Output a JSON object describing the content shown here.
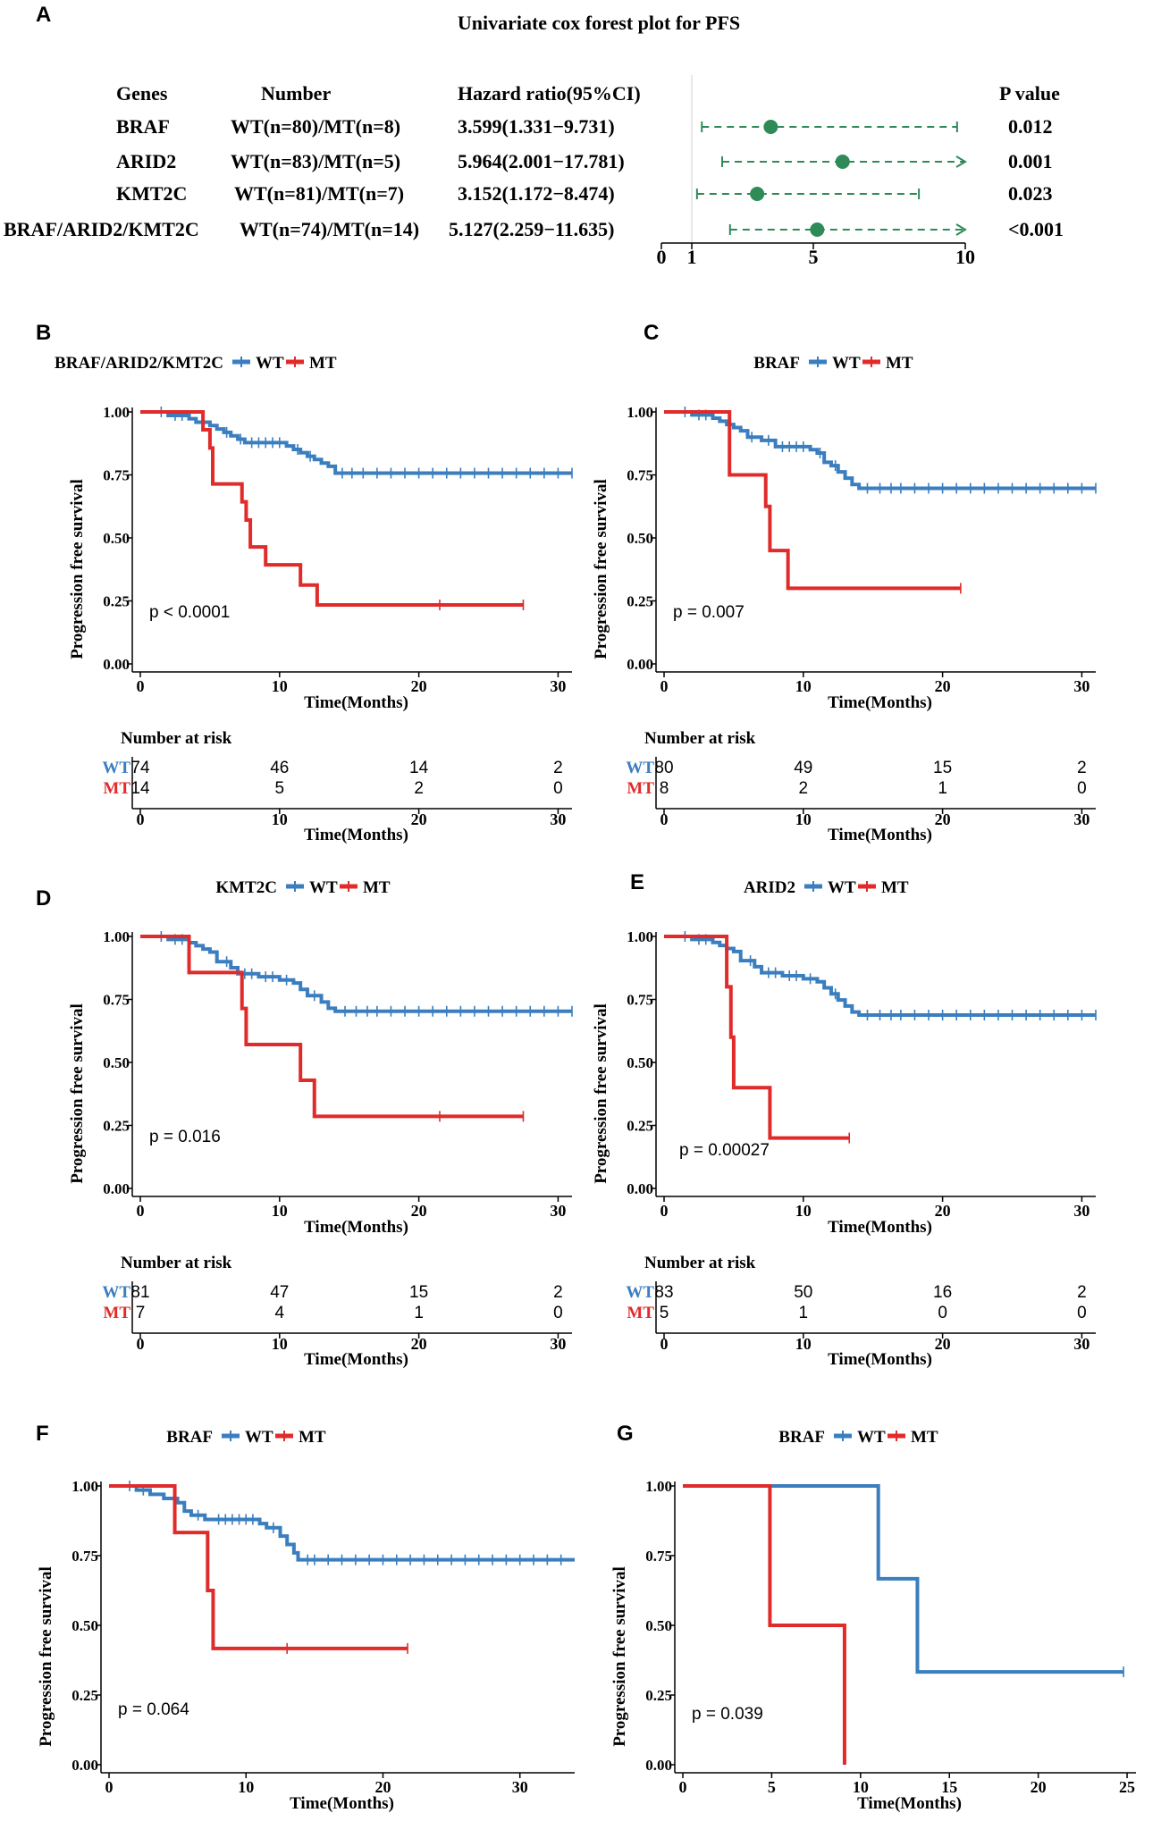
{
  "colors": {
    "wt": "#3a7ebf",
    "mt": "#e02b2b",
    "forest": "#2e8b57",
    "axis": "#000000"
  },
  "panel_letters": [
    "A",
    "B",
    "C",
    "D",
    "E",
    "F",
    "G"
  ],
  "forest": {
    "letter": "A",
    "title": "Univariate cox forest plot for PFS",
    "headers": {
      "genes": "Genes",
      "number": "Number",
      "hr": "Hazard ratio(95%CI)",
      "p": "P value"
    },
    "rows": [
      {
        "gene": "BRAF",
        "number": "WT(n=80)/MT(n=8)",
        "hr_text": "3.599(1.331−9.731)",
        "p": "0.012",
        "hr": 3.599,
        "lo": 1.331,
        "hi": 9.731
      },
      {
        "gene": "ARID2",
        "number": "WT(n=83)/MT(n=5)",
        "hr_text": "5.964(2.001−17.781)",
        "p": "0.001",
        "hr": 5.964,
        "lo": 2.001,
        "hi": 17.781
      },
      {
        "gene": "KMT2C",
        "number": "WT(n=81)/MT(n=7)",
        "hr_text": "3.152(1.172−8.474)",
        "p": "0.023",
        "hr": 3.152,
        "lo": 1.172,
        "hi": 8.474
      },
      {
        "gene": "BRAF/ARID2/KMT2C",
        "number": "WT(n=74)/MT(n=14)",
        "hr_text": "5.127(2.259−11.635)",
        "p": "<0.001",
        "hr": 5.127,
        "lo": 2.259,
        "hi": 11.635
      }
    ],
    "axis": {
      "min": 0,
      "max": 10,
      "ticks": [
        "0",
        "1",
        "5",
        "10"
      ],
      "tick_values": [
        0,
        1,
        5,
        10
      ],
      "ref": 1
    }
  },
  "chart_data": [
    {
      "type": "line",
      "id": "B",
      "letter": "B",
      "legend_title": "BRAF/ARID2/KMT2C",
      "legend_wt": "WT",
      "legend_mt": "MT",
      "ylabel": "Progression free survival",
      "xlabel": "Time(Months)",
      "pvalue": "p < 0.0001",
      "xlim": [
        0,
        31
      ],
      "ylim": [
        0,
        1
      ],
      "xticks": [
        0,
        10,
        20,
        30
      ],
      "yticks": [
        "0.00",
        "0.25",
        "0.50",
        "0.75",
        "1.00"
      ],
      "series": [
        {
          "name": "WT",
          "steps": [
            [
              0,
              1
            ],
            [
              2,
              0.986
            ],
            [
              3.5,
              0.973
            ],
            [
              4,
              0.959
            ],
            [
              5,
              0.946
            ],
            [
              5.5,
              0.932
            ],
            [
              6,
              0.919
            ],
            [
              6.5,
              0.905
            ],
            [
              7,
              0.892
            ],
            [
              7.5,
              0.878
            ],
            [
              10.5,
              0.865
            ],
            [
              11,
              0.851
            ],
            [
              11.5,
              0.838
            ],
            [
              12,
              0.824
            ],
            [
              12.5,
              0.811
            ],
            [
              13,
              0.797
            ],
            [
              13.5,
              0.784
            ],
            [
              14,
              0.757
            ]
          ],
          "end": 31,
          "censors": [
            1.5,
            2.5,
            3,
            6.2,
            7.2,
            8,
            8.5,
            9,
            9.5,
            10,
            11.3,
            12.2,
            14.5,
            15.2,
            16,
            17,
            18,
            19,
            20,
            21,
            22,
            23,
            24,
            25,
            26,
            27,
            28,
            29,
            30,
            31
          ]
        },
        {
          "name": "MT",
          "steps": [
            [
              0,
              1
            ],
            [
              4.5,
              0.929
            ],
            [
              5,
              0.857
            ],
            [
              5.2,
              0.714
            ],
            [
              7.3,
              0.643
            ],
            [
              7.6,
              0.571
            ],
            [
              7.9,
              0.464
            ],
            [
              9,
              0.393
            ],
            [
              11.5,
              0.313
            ],
            [
              12.7,
              0.234
            ]
          ],
          "end": 27.5,
          "censors": [
            21.5,
            27.5
          ]
        }
      ],
      "risk": {
        "title": "Number at risk",
        "wt_label": "WT",
        "mt_label": "MT",
        "wt": [
          "74",
          "46",
          "14",
          "2"
        ],
        "mt": [
          "14",
          "5",
          "2",
          "0"
        ],
        "xlabel": "Time(Months)"
      }
    },
    {
      "type": "line",
      "id": "C",
      "letter": "C",
      "legend_title": "BRAF",
      "legend_wt": "WT",
      "legend_mt": "MT",
      "ylabel": "Progression free survival",
      "xlabel": "Time(Months)",
      "pvalue": "p = 0.007",
      "xlim": [
        0,
        31
      ],
      "ylim": [
        0,
        1
      ],
      "xticks": [
        0,
        10,
        20,
        30
      ],
      "yticks": [
        "0.00",
        "0.25",
        "0.50",
        "0.75",
        "1.00"
      ],
      "series": [
        {
          "name": "WT",
          "steps": [
            [
              0,
              1
            ],
            [
              2,
              0.988
            ],
            [
              3.5,
              0.975
            ],
            [
              4,
              0.963
            ],
            [
              4.5,
              0.95
            ],
            [
              5,
              0.938
            ],
            [
              5.5,
              0.925
            ],
            [
              6,
              0.9
            ],
            [
              7,
              0.887
            ],
            [
              8,
              0.862
            ],
            [
              10.5,
              0.85
            ],
            [
              11,
              0.837
            ],
            [
              11.5,
              0.8
            ],
            [
              12,
              0.787
            ],
            [
              12.5,
              0.762
            ],
            [
              13,
              0.737
            ],
            [
              13.5,
              0.712
            ],
            [
              14,
              0.697
            ]
          ],
          "end": 31,
          "censors": [
            1.5,
            2.5,
            3,
            6.3,
            7.5,
            8.5,
            9,
            9.5,
            10,
            11.2,
            12.3,
            14.6,
            15.5,
            16.3,
            17,
            18,
            19,
            20,
            21,
            22,
            23,
            24,
            25,
            26,
            27,
            28,
            29,
            30,
            31
          ]
        },
        {
          "name": "MT",
          "steps": [
            [
              0,
              1
            ],
            [
              4.7,
              0.75
            ],
            [
              7.3,
              0.625
            ],
            [
              7.6,
              0.45
            ],
            [
              8.9,
              0.3
            ]
          ],
          "end": 21.3,
          "censors": [
            21.3
          ]
        }
      ],
      "risk": {
        "title": "Number at risk",
        "wt_label": "WT",
        "mt_label": "MT",
        "wt": [
          "80",
          "49",
          "15",
          "2"
        ],
        "mt": [
          "8",
          "2",
          "1",
          "0"
        ],
        "xlabel": "Time(Months)"
      }
    },
    {
      "type": "line",
      "id": "D",
      "letter": "D",
      "legend_title": "KMT2C",
      "legend_wt": "WT",
      "legend_mt": "MT",
      "ylabel": "Progression free survival",
      "xlabel": "Time(Months)",
      "pvalue": "p = 0.016",
      "xlim": [
        0,
        31
      ],
      "ylim": [
        0,
        1
      ],
      "xticks": [
        0,
        10,
        20,
        30
      ],
      "yticks": [
        "0.00",
        "0.25",
        "0.50",
        "0.75",
        "1.00"
      ],
      "series": [
        {
          "name": "WT",
          "steps": [
            [
              0,
              1
            ],
            [
              2,
              0.988
            ],
            [
              3.5,
              0.975
            ],
            [
              4,
              0.963
            ],
            [
              4.5,
              0.95
            ],
            [
              5,
              0.938
            ],
            [
              5.5,
              0.9
            ],
            [
              6.5,
              0.876
            ],
            [
              7,
              0.852
            ],
            [
              8.5,
              0.84
            ],
            [
              10,
              0.827
            ],
            [
              11,
              0.815
            ],
            [
              11.5,
              0.79
            ],
            [
              12,
              0.765
            ],
            [
              13,
              0.74
            ],
            [
              13.5,
              0.715
            ],
            [
              14,
              0.703
            ]
          ],
          "end": 31,
          "censors": [
            1.5,
            2.5,
            3,
            6.2,
            7.5,
            8,
            9,
            9.5,
            10.5,
            12.5,
            14.7,
            15.5,
            16.3,
            17,
            18,
            19,
            20,
            21,
            22,
            23,
            24,
            25,
            26,
            27,
            28,
            29,
            30,
            31
          ]
        },
        {
          "name": "MT",
          "steps": [
            [
              0,
              1
            ],
            [
              3.5,
              0.857
            ],
            [
              7.3,
              0.714
            ],
            [
              7.6,
              0.571
            ],
            [
              11.5,
              0.429
            ],
            [
              12.5,
              0.286
            ]
          ],
          "end": 27.5,
          "censors": [
            21.5,
            27.5
          ]
        }
      ],
      "risk": {
        "title": "Number at risk",
        "wt_label": "WT",
        "mt_label": "MT",
        "wt": [
          "81",
          "47",
          "15",
          "2"
        ],
        "mt": [
          "7",
          "4",
          "1",
          "0"
        ],
        "xlabel": "Time(Months)"
      }
    },
    {
      "type": "line",
      "id": "E",
      "letter": "E",
      "legend_title": "ARID2",
      "legend_wt": "WT",
      "legend_mt": "MT",
      "ylabel": "Progression free survival",
      "xlabel": "Time(Months)",
      "pvalue": "p = 0.00027",
      "xlim": [
        0,
        31
      ],
      "ylim": [
        0,
        1
      ],
      "xticks": [
        0,
        10,
        20,
        30
      ],
      "yticks": [
        "0.00",
        "0.25",
        "0.50",
        "0.75",
        "1.00"
      ],
      "series": [
        {
          "name": "WT",
          "steps": [
            [
              0,
              1
            ],
            [
              2,
              0.988
            ],
            [
              3.5,
              0.976
            ],
            [
              4,
              0.964
            ],
            [
              4.5,
              0.952
            ],
            [
              5,
              0.94
            ],
            [
              5.5,
              0.904
            ],
            [
              6.5,
              0.88
            ],
            [
              7,
              0.856
            ],
            [
              8.5,
              0.844
            ],
            [
              10,
              0.832
            ],
            [
              11,
              0.82
            ],
            [
              11.5,
              0.796
            ],
            [
              12,
              0.772
            ],
            [
              12.5,
              0.748
            ],
            [
              13,
              0.724
            ],
            [
              13.5,
              0.7
            ],
            [
              14,
              0.688
            ]
          ],
          "end": 31,
          "censors": [
            1.5,
            2.5,
            3,
            6.2,
            7.5,
            8,
            9,
            9.5,
            10.5,
            12.3,
            14.6,
            15.5,
            16.3,
            17,
            18,
            19,
            20,
            21,
            22,
            23,
            24,
            25,
            26,
            27,
            28,
            29,
            30,
            31
          ]
        },
        {
          "name": "MT",
          "steps": [
            [
              0,
              1
            ],
            [
              4.5,
              0.8
            ],
            [
              4.8,
              0.6
            ],
            [
              5,
              0.4
            ],
            [
              7.6,
              0.2
            ]
          ],
          "end": 13.3,
          "censors": [
            13.3
          ]
        }
      ],
      "risk": {
        "title": "Number at risk",
        "wt_label": "WT",
        "mt_label": "MT",
        "wt": [
          "83",
          "50",
          "16",
          "2"
        ],
        "mt": [
          "5",
          "1",
          "0",
          "0"
        ],
        "xlabel": "Time(Months)"
      }
    },
    {
      "type": "line",
      "id": "F",
      "letter": "F",
      "legend_title": "BRAF",
      "legend_wt": "WT",
      "legend_mt": "MT",
      "ylabel": "Progression free survival",
      "xlabel": "Time(Months)",
      "pvalue": "p = 0.064",
      "xlim": [
        0,
        34
      ],
      "ylim": [
        0,
        1
      ],
      "xticks": [
        0,
        10,
        20,
        30
      ],
      "yticks": [
        "0.00",
        "0.25",
        "0.50",
        "0.75",
        "1.00"
      ],
      "series": [
        {
          "name": "WT",
          "steps": [
            [
              0,
              1
            ],
            [
              2,
              0.985
            ],
            [
              3,
              0.97
            ],
            [
              4,
              0.955
            ],
            [
              5,
              0.94
            ],
            [
              5.5,
              0.91
            ],
            [
              6,
              0.895
            ],
            [
              7,
              0.88
            ],
            [
              11,
              0.865
            ],
            [
              11.5,
              0.85
            ],
            [
              12.5,
              0.82
            ],
            [
              13,
              0.79
            ],
            [
              13.5,
              0.76
            ],
            [
              13.8,
              0.735
            ]
          ],
          "end": 34,
          "censors": [
            1.5,
            2.5,
            6.5,
            8,
            8.5,
            9,
            9.5,
            10,
            10.5,
            12,
            14.5,
            15,
            16,
            17,
            18,
            19,
            20,
            21,
            22,
            23,
            24,
            25,
            26,
            27,
            28,
            29,
            30,
            31,
            32,
            33
          ]
        },
        {
          "name": "MT",
          "steps": [
            [
              0,
              1
            ],
            [
              4.8,
              0.833
            ],
            [
              7.2,
              0.625
            ],
            [
              7.6,
              0.417
            ]
          ],
          "end": 21.8,
          "censors": [
            13,
            21.8
          ]
        }
      ]
    },
    {
      "type": "line",
      "id": "G",
      "letter": "G",
      "legend_title": "BRAF",
      "legend_wt": "WT",
      "legend_mt": "MT",
      "ylabel": "Progression free survival",
      "xlabel": "Time(Months)",
      "pvalue": "p = 0.039",
      "xlim": [
        0,
        25.5
      ],
      "ylim": [
        0,
        1
      ],
      "xticks": [
        0,
        5,
        10,
        15,
        20,
        25
      ],
      "yticks": [
        "0.00",
        "0.25",
        "0.50",
        "0.75",
        "1.00"
      ],
      "series": [
        {
          "name": "WT",
          "steps": [
            [
              0,
              1
            ],
            [
              11,
              0.667
            ],
            [
              13.2,
              0.333
            ]
          ],
          "end": 24.8,
          "censors": [
            24.8
          ]
        },
        {
          "name": "MT",
          "steps": [
            [
              0,
              1
            ],
            [
              4.9,
              0.5
            ],
            [
              9.1,
              0
            ]
          ],
          "end": 9.1,
          "censors": []
        }
      ]
    }
  ]
}
